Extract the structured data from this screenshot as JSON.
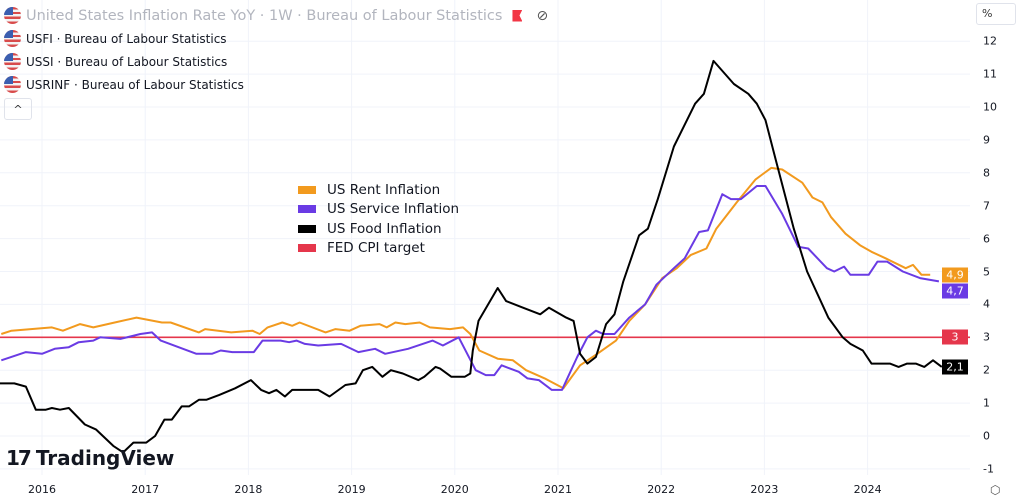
{
  "header": {
    "title": "United States Inflation Rate YoY · 1W · Bureau of Labour Statistics",
    "icons": [
      "us-flag-icon",
      "red-flag-icon",
      "eye-off-icon"
    ],
    "rows": [
      "USFI · Bureau of Labour Statistics",
      "USSI · Bureau of Labour Statistics",
      "USRINF · Bureau of Labour Statistics"
    ],
    "collapse_label": "^"
  },
  "axis": {
    "unit": "%"
  },
  "branding": {
    "logo_mark": "17",
    "logo_text": "TradingView"
  },
  "colors": {
    "rent": "#f29a1e",
    "service": "#6a3be4",
    "food": "#000000",
    "target": "#e5364b",
    "grid": "#f0f3fa"
  },
  "chart_data": {
    "type": "line",
    "title": "",
    "xlabel": "",
    "ylabel": "",
    "x_ticks": [
      "2016",
      "2017",
      "2018",
      "2019",
      "2020",
      "2021",
      "2022",
      "2023",
      "2024"
    ],
    "y_ticks": [
      "-1",
      "0",
      "1",
      "2",
      "3",
      "4",
      "5",
      "6",
      "7",
      "8",
      "9",
      "10",
      "11",
      "12"
    ],
    "ylim": [
      -1.3,
      12.5
    ],
    "xlim": [
      "2015-08-01",
      "2024-12-31"
    ],
    "grid": true,
    "legend_placement": "center-left",
    "last_value_labels": {
      "rent": "4,9",
      "service": "4,7",
      "target": "3",
      "food": "2,1"
    },
    "series": [
      {
        "key": "rent",
        "name": "US Rent Inflation",
        "color": "#f29a1e",
        "points": [
          [
            "2015-08-10",
            3.1
          ],
          [
            "2015-09-15",
            3.2
          ],
          [
            "2016-02-05",
            3.3
          ],
          [
            "2016-03-15",
            3.2
          ],
          [
            "2016-05-15",
            3.4
          ],
          [
            "2016-07-01",
            3.3
          ],
          [
            "2016-09-15",
            3.45
          ],
          [
            "2016-12-01",
            3.6
          ],
          [
            "2017-03-01",
            3.45
          ],
          [
            "2017-04-01",
            3.45
          ],
          [
            "2017-07-10",
            3.15
          ],
          [
            "2017-08-01",
            3.25
          ],
          [
            "2017-11-01",
            3.15
          ],
          [
            "2018-01-15",
            3.2
          ],
          [
            "2018-02-10",
            3.1
          ],
          [
            "2018-03-10",
            3.3
          ],
          [
            "2018-05-01",
            3.45
          ],
          [
            "2018-06-05",
            3.35
          ],
          [
            "2018-07-01",
            3.45
          ],
          [
            "2018-10-01",
            3.15
          ],
          [
            "2018-11-05",
            3.25
          ],
          [
            "2018-12-25",
            3.2
          ],
          [
            "2019-02-01",
            3.35
          ],
          [
            "2019-04-10",
            3.4
          ],
          [
            "2019-05-05",
            3.3
          ],
          [
            "2019-06-05",
            3.45
          ],
          [
            "2019-07-10",
            3.4
          ],
          [
            "2019-08-30",
            3.45
          ],
          [
            "2019-10-05",
            3.3
          ],
          [
            "2019-12-15",
            3.25
          ],
          [
            "2020-01-30",
            3.3
          ],
          [
            "2020-02-25",
            3.1
          ],
          [
            "2020-03-28",
            2.6
          ],
          [
            "2020-06-01",
            2.35
          ],
          [
            "2020-07-25",
            2.3
          ],
          [
            "2020-09-10",
            2.0
          ],
          [
            "2020-11-15",
            1.75
          ],
          [
            "2021-01-20",
            1.45
          ],
          [
            "2021-03-20",
            2.15
          ],
          [
            "2021-05-20",
            2.5
          ],
          [
            "2021-07-25",
            2.9
          ],
          [
            "2021-09-10",
            3.5
          ],
          [
            "2021-11-05",
            4.0
          ],
          [
            "2022-01-05",
            4.8
          ],
          [
            "2022-02-25",
            5.1
          ],
          [
            "2022-04-15",
            5.5
          ],
          [
            "2022-06-10",
            5.7
          ],
          [
            "2022-07-15",
            6.3
          ],
          [
            "2022-09-25",
            7.1
          ],
          [
            "2022-12-01",
            7.8
          ],
          [
            "2023-01-25",
            8.15
          ],
          [
            "2023-03-05",
            8.1
          ],
          [
            "2023-05-15",
            7.7
          ],
          [
            "2023-06-20",
            7.25
          ],
          [
            "2023-07-25",
            7.1
          ],
          [
            "2023-08-25",
            6.65
          ],
          [
            "2023-10-15",
            6.15
          ],
          [
            "2023-12-05",
            5.8
          ],
          [
            "2024-01-15",
            5.6
          ],
          [
            "2024-03-05",
            5.4
          ],
          [
            "2024-05-15",
            5.1
          ],
          [
            "2024-06-10",
            5.2
          ],
          [
            "2024-07-10",
            4.9
          ],
          [
            "2024-08-10",
            4.9
          ]
        ]
      },
      {
        "key": "service",
        "name": "US Service Inflation",
        "color": "#6a3be4",
        "points": [
          [
            "2015-08-10",
            2.3
          ],
          [
            "2015-11-05",
            2.55
          ],
          [
            "2016-01-01",
            2.5
          ],
          [
            "2016-02-15",
            2.65
          ],
          [
            "2016-04-05",
            2.7
          ],
          [
            "2016-05-10",
            2.85
          ],
          [
            "2016-07-01",
            2.9
          ],
          [
            "2016-07-25",
            3.0
          ],
          [
            "2016-10-05",
            2.95
          ],
          [
            "2016-12-15",
            3.1
          ],
          [
            "2017-01-25",
            3.15
          ],
          [
            "2017-02-25",
            2.9
          ],
          [
            "2017-07-01",
            2.5
          ],
          [
            "2017-08-25",
            2.5
          ],
          [
            "2017-09-25",
            2.6
          ],
          [
            "2017-11-05",
            2.55
          ],
          [
            "2018-01-20",
            2.55
          ],
          [
            "2018-02-20",
            2.9
          ],
          [
            "2018-04-25",
            2.9
          ],
          [
            "2018-05-25",
            2.85
          ],
          [
            "2018-06-20",
            2.9
          ],
          [
            "2018-07-20",
            2.8
          ],
          [
            "2018-09-05",
            2.75
          ],
          [
            "2018-11-25",
            2.8
          ],
          [
            "2019-01-25",
            2.55
          ],
          [
            "2019-03-25",
            2.65
          ],
          [
            "2019-04-30",
            2.5
          ],
          [
            "2019-07-20",
            2.65
          ],
          [
            "2019-10-15",
            2.9
          ],
          [
            "2019-11-20",
            2.75
          ],
          [
            "2020-01-15",
            3.0
          ],
          [
            "2020-03-15",
            2.0
          ],
          [
            "2020-04-20",
            1.85
          ],
          [
            "2020-05-20",
            1.85
          ],
          [
            "2020-06-15",
            2.15
          ],
          [
            "2020-07-15",
            2.05
          ],
          [
            "2020-08-15",
            1.95
          ],
          [
            "2020-09-15",
            1.75
          ],
          [
            "2020-10-25",
            1.7
          ],
          [
            "2020-12-10",
            1.4
          ],
          [
            "2021-01-15",
            1.4
          ],
          [
            "2021-03-10",
            2.4
          ],
          [
            "2021-04-15",
            3.0
          ],
          [
            "2021-05-15",
            3.2
          ],
          [
            "2021-06-10",
            3.1
          ],
          [
            "2021-07-20",
            3.1
          ],
          [
            "2021-09-10",
            3.6
          ],
          [
            "2021-11-05",
            4.0
          ],
          [
            "2021-12-15",
            4.6
          ],
          [
            "2022-02-15",
            5.1
          ],
          [
            "2022-03-25",
            5.4
          ],
          [
            "2022-05-15",
            6.2
          ],
          [
            "2022-06-15",
            6.25
          ],
          [
            "2022-08-05",
            7.35
          ],
          [
            "2022-09-05",
            7.2
          ],
          [
            "2022-10-10",
            7.2
          ],
          [
            "2022-12-05",
            7.6
          ],
          [
            "2023-01-05",
            7.6
          ],
          [
            "2023-03-05",
            6.75
          ],
          [
            "2023-05-01",
            5.75
          ],
          [
            "2023-06-05",
            5.7
          ],
          [
            "2023-08-10",
            5.1
          ],
          [
            "2023-09-05",
            5.0
          ],
          [
            "2023-10-10",
            5.15
          ],
          [
            "2023-11-01",
            4.9
          ],
          [
            "2024-01-05",
            4.9
          ],
          [
            "2024-02-05",
            5.3
          ],
          [
            "2024-03-10",
            5.3
          ],
          [
            "2024-05-05",
            5.0
          ],
          [
            "2024-07-05",
            4.8
          ],
          [
            "2024-09-10",
            4.7
          ]
        ]
      },
      {
        "key": "food",
        "name": "US Food Inflation",
        "color": "#000000",
        "points": [
          [
            "2015-08-01",
            1.6
          ],
          [
            "2015-09-25",
            1.6
          ],
          [
            "2015-11-05",
            1.5
          ],
          [
            "2015-12-10",
            0.8
          ],
          [
            "2016-01-15",
            0.8
          ],
          [
            "2016-02-05",
            0.85
          ],
          [
            "2016-03-05",
            0.8
          ],
          [
            "2016-04-05",
            0.85
          ],
          [
            "2016-06-01",
            0.35
          ],
          [
            "2016-07-10",
            0.2
          ],
          [
            "2016-09-10",
            -0.3
          ],
          [
            "2016-10-15",
            -0.5
          ],
          [
            "2016-11-20",
            -0.2
          ],
          [
            "2017-01-05",
            -0.2
          ],
          [
            "2017-02-05",
            0.0
          ],
          [
            "2017-03-10",
            0.5
          ],
          [
            "2017-04-05",
            0.5
          ],
          [
            "2017-05-10",
            0.9
          ],
          [
            "2017-06-05",
            0.9
          ],
          [
            "2017-07-10",
            1.1
          ],
          [
            "2017-08-05",
            1.1
          ],
          [
            "2017-09-20",
            1.25
          ],
          [
            "2017-11-15",
            1.45
          ],
          [
            "2018-01-10",
            1.7
          ],
          [
            "2018-02-15",
            1.4
          ],
          [
            "2018-03-15",
            1.3
          ],
          [
            "2018-04-10",
            1.4
          ],
          [
            "2018-05-10",
            1.2
          ],
          [
            "2018-06-05",
            1.4
          ],
          [
            "2018-09-05",
            1.4
          ],
          [
            "2018-10-15",
            1.2
          ],
          [
            "2018-12-10",
            1.55
          ],
          [
            "2019-01-15",
            1.6
          ],
          [
            "2019-02-10",
            2.0
          ],
          [
            "2019-03-15",
            2.1
          ],
          [
            "2019-04-20",
            1.8
          ],
          [
            "2019-05-20",
            2.0
          ],
          [
            "2019-07-01",
            1.9
          ],
          [
            "2019-08-25",
            1.7
          ],
          [
            "2019-09-15",
            1.8
          ],
          [
            "2019-10-25",
            2.1
          ],
          [
            "2019-11-10",
            2.05
          ],
          [
            "2019-12-20",
            1.8
          ],
          [
            "2020-02-05",
            1.8
          ],
          [
            "2020-02-25",
            1.9
          ],
          [
            "2020-03-05",
            2.6
          ],
          [
            "2020-03-25",
            3.5
          ],
          [
            "2020-06-01",
            4.5
          ],
          [
            "2020-07-01",
            4.1
          ],
          [
            "2020-08-30",
            3.9
          ],
          [
            "2020-10-30",
            3.7
          ],
          [
            "2020-11-30",
            3.9
          ],
          [
            "2021-01-30",
            3.6
          ],
          [
            "2021-02-25",
            3.5
          ],
          [
            "2021-03-20",
            2.5
          ],
          [
            "2021-04-15",
            2.2
          ],
          [
            "2021-05-15",
            2.4
          ],
          [
            "2021-06-20",
            3.4
          ],
          [
            "2021-07-20",
            3.7
          ],
          [
            "2021-08-20",
            4.7
          ],
          [
            "2021-10-15",
            6.1
          ],
          [
            "2021-11-15",
            6.3
          ],
          [
            "2021-12-20",
            7.2
          ],
          [
            "2022-02-15",
            8.8
          ],
          [
            "2022-05-01",
            10.1
          ],
          [
            "2022-06-01",
            10.4
          ],
          [
            "2022-07-05",
            11.4
          ],
          [
            "2022-09-15",
            10.7
          ],
          [
            "2022-11-05",
            10.4
          ],
          [
            "2022-12-05",
            10.1
          ],
          [
            "2023-01-05",
            9.6
          ],
          [
            "2023-02-10",
            8.4
          ],
          [
            "2023-04-15",
            6.3
          ],
          [
            "2023-06-01",
            5.0
          ],
          [
            "2023-08-15",
            3.6
          ],
          [
            "2023-10-05",
            3.0
          ],
          [
            "2023-11-01",
            2.8
          ],
          [
            "2023-12-15",
            2.6
          ],
          [
            "2024-01-15",
            2.2
          ],
          [
            "2024-03-20",
            2.2
          ],
          [
            "2024-04-20",
            2.1
          ],
          [
            "2024-05-20",
            2.2
          ],
          [
            "2024-06-20",
            2.2
          ],
          [
            "2024-07-20",
            2.1
          ],
          [
            "2024-08-20",
            2.3
          ],
          [
            "2024-09-20",
            2.1
          ]
        ]
      },
      {
        "key": "target",
        "name": "FED CPI target",
        "color": "#e5364b",
        "constant": 3
      }
    ]
  }
}
